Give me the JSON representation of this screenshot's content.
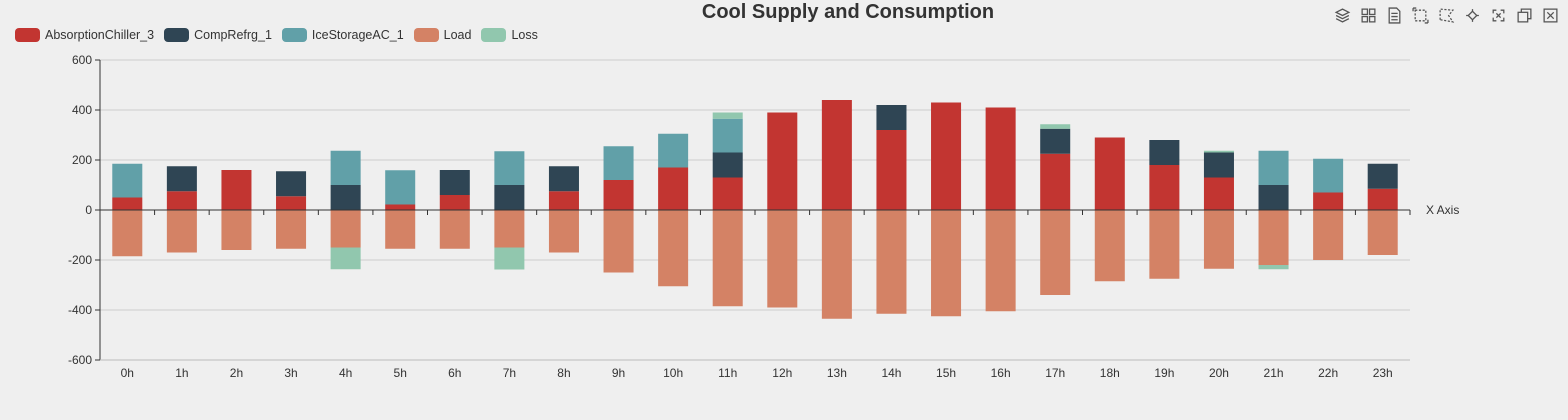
{
  "chart_data": {
    "type": "bar",
    "stacked": true,
    "title": "Cool Supply and Consumption",
    "xlabel": "X Axis",
    "ylabel": "",
    "ylim": [
      -600,
      600
    ],
    "yticks": [
      600,
      400,
      200,
      0,
      -200,
      -400,
      -600
    ],
    "grid": true,
    "legend_position": "top-left",
    "categories": [
      "0h",
      "1h",
      "2h",
      "3h",
      "4h",
      "5h",
      "6h",
      "7h",
      "8h",
      "9h",
      "10h",
      "11h",
      "12h",
      "13h",
      "14h",
      "15h",
      "16h",
      "17h",
      "18h",
      "19h",
      "20h",
      "21h",
      "22h",
      "23h"
    ],
    "series": [
      {
        "name": "AbsorptionChiller_3",
        "color": "#c23531",
        "values": [
          50,
          75,
          160,
          55,
          0,
          22,
          60,
          0,
          75,
          120,
          170,
          130,
          390,
          440,
          320,
          430,
          410,
          225,
          290,
          180,
          130,
          0,
          70,
          85
        ]
      },
      {
        "name": "CompRefrg_1",
        "color": "#2f4554",
        "values": [
          0,
          100,
          0,
          100,
          100,
          0,
          100,
          100,
          100,
          0,
          0,
          100,
          0,
          0,
          100,
          0,
          0,
          100,
          0,
          100,
          100,
          100,
          0,
          100
        ]
      },
      {
        "name": "IceStorageAC_1",
        "color": "#61a0a8",
        "values": [
          135,
          0,
          0,
          0,
          137,
          137,
          0,
          135,
          0,
          135,
          135,
          135,
          0,
          0,
          0,
          0,
          0,
          0,
          0,
          0,
          0,
          137,
          135,
          0
        ]
      },
      {
        "name": "Load",
        "color": "#d48265",
        "values": [
          -185,
          -170,
          -160,
          -155,
          -150,
          -155,
          -155,
          -150,
          -170,
          -250,
          -305,
          -385,
          -390,
          -435,
          -415,
          -425,
          -405,
          -340,
          -285,
          -275,
          -235,
          -220,
          -200,
          -180
        ]
      },
      {
        "name": "Loss",
        "color": "#91c7ae",
        "values": [
          0,
          0,
          0,
          0,
          -87,
          0,
          0,
          -88,
          0,
          0,
          0,
          25,
          0,
          0,
          0,
          0,
          0,
          18,
          0,
          0,
          7,
          -17,
          0,
          0
        ]
      }
    ]
  },
  "toolbox": {
    "tools": [
      {
        "name": "layers-icon"
      },
      {
        "name": "grid-icon"
      },
      {
        "name": "data-view-icon"
      },
      {
        "name": "rect-select-icon"
      },
      {
        "name": "lasso-select-icon"
      },
      {
        "name": "keep-select-icon"
      },
      {
        "name": "clear-select-icon"
      },
      {
        "name": "restore-icon"
      },
      {
        "name": "save-image-icon"
      }
    ]
  }
}
